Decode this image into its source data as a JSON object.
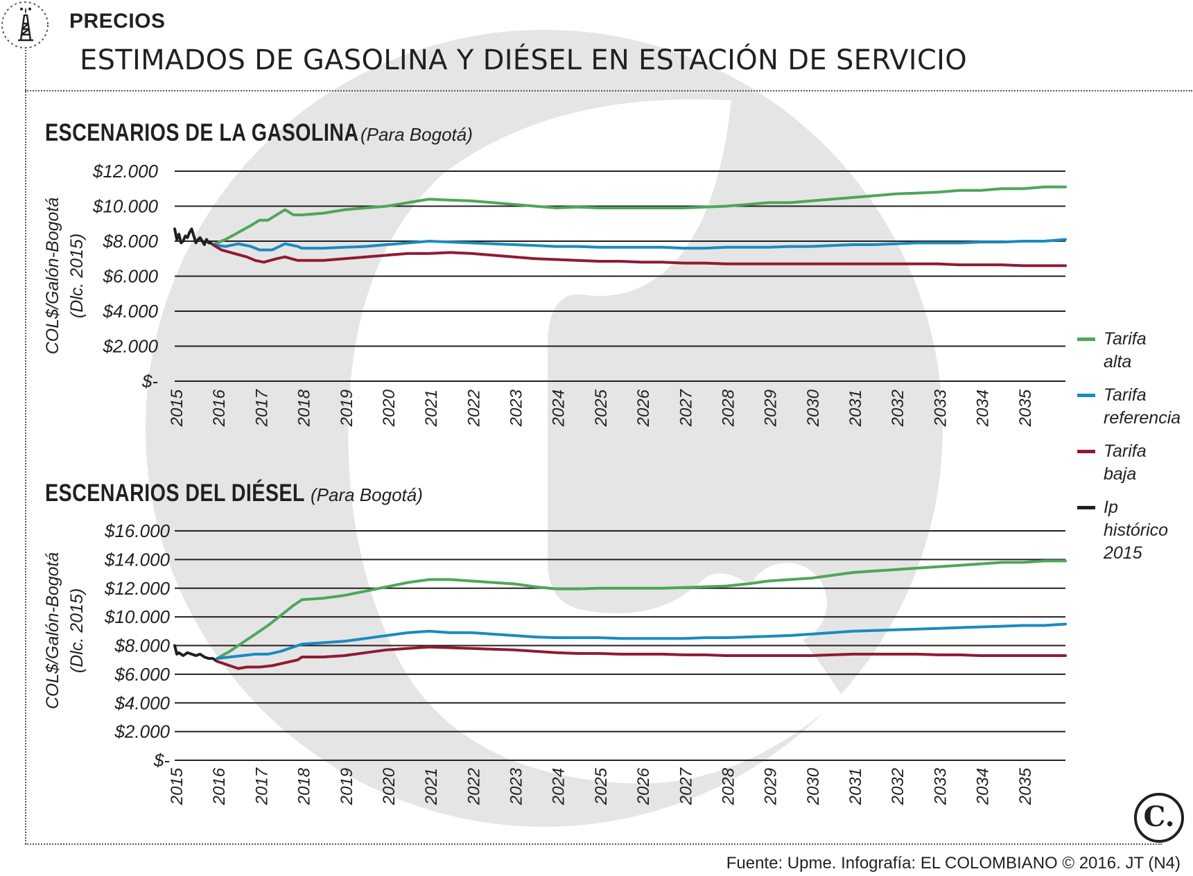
{
  "header": {
    "section": "PRECIOS",
    "title": "ESTIMADOS DE GASOLINA Y DIÉSEL EN ESTACIÓN DE SERVICIO",
    "icon": "oil-derrick-icon"
  },
  "colors": {
    "alta": "#4ea65a",
    "referencia": "#1a8bbf",
    "baja": "#8e1b33",
    "historico": "#231f20",
    "watermark": "#e5e5e5"
  },
  "legend": {
    "items": [
      {
        "key": "alta",
        "lines": [
          "Tarifa",
          "alta"
        ]
      },
      {
        "key": "referencia",
        "lines": [
          "Tarifa",
          "referencia"
        ]
      },
      {
        "key": "baja",
        "lines": [
          "Tarifa",
          "baja"
        ]
      },
      {
        "key": "historico",
        "lines": [
          "Ip",
          "histórico",
          "2015"
        ]
      }
    ]
  },
  "footer": {
    "source": "Fuente: Upme. Infografía: EL COLOMBIANO © 2016. JT (N4)",
    "logo_letter": "C."
  },
  "chart_data": [
    {
      "type": "line",
      "title": "ESCENARIOS DE LA GASOLINA",
      "subtitle": "(Para Bogotá)",
      "ylabel": [
        "COL$/Galón-Bogotá",
        "(Dlc. 2015)"
      ],
      "xlabel": "",
      "ylim": [
        0,
        12000
      ],
      "xlim": [
        2015,
        2036
      ],
      "yticks": [
        0,
        2000,
        4000,
        6000,
        8000,
        10000,
        12000
      ],
      "ytick_labels": [
        "$-",
        "$2.000",
        "$4.000",
        "$6.000",
        "$8.000",
        "$10.000",
        "$12.000"
      ],
      "xtick_labels": [
        "2015",
        "2016",
        "2017",
        "2018",
        "2019",
        "2020",
        "2021",
        "2022",
        "2023",
        "2024",
        "2025",
        "2026",
        "2027",
        "2028",
        "2029",
        "2030",
        "2031",
        "2032",
        "2033",
        "2034",
        "2035"
      ],
      "series": [
        {
          "key": "historico",
          "name": "Ip histórico 2015",
          "x": [
            2015.0,
            2015.05,
            2015.1,
            2015.15,
            2015.2,
            2015.25,
            2015.3,
            2015.35,
            2015.4,
            2015.45,
            2015.5,
            2015.55,
            2015.6,
            2015.65,
            2015.7,
            2015.75,
            2015.8,
            2015.85,
            2015.9
          ],
          "y": [
            8700,
            8100,
            8400,
            7900,
            8000,
            8300,
            8200,
            8500,
            8700,
            8300,
            7900,
            8100,
            8200,
            8000,
            7800,
            8100,
            7900,
            7900,
            7800
          ]
        },
        {
          "key": "alta",
          "name": "Tarifa alta",
          "x": [
            2015.9,
            2016.2,
            2016.5,
            2016.8,
            2017.0,
            2017.2,
            2017.4,
            2017.6,
            2017.8,
            2018.0,
            2018.5,
            2019.0,
            2019.5,
            2020.0,
            2020.5,
            2021.0,
            2021.5,
            2022.0,
            2022.5,
            2023.0,
            2023.5,
            2024.0,
            2024.5,
            2025.0,
            2025.5,
            2026.0,
            2026.5,
            2027.0,
            2027.5,
            2028.0,
            2028.5,
            2029.0,
            2029.5,
            2030.0,
            2030.5,
            2031.0,
            2031.5,
            2032.0,
            2032.5,
            2033.0,
            2033.5,
            2034.0,
            2034.5,
            2035.0,
            2035.5,
            2036.0
          ],
          "y": [
            7800,
            8100,
            8500,
            8900,
            9200,
            9200,
            9500,
            9800,
            9500,
            9500,
            9600,
            9800,
            9900,
            10000,
            10200,
            10400,
            10350,
            10300,
            10200,
            10100,
            10000,
            9900,
            9950,
            9900,
            9900,
            9900,
            9900,
            9900,
            9950,
            10000,
            10100,
            10200,
            10200,
            10300,
            10400,
            10500,
            10600,
            10700,
            10750,
            10800,
            10900,
            10900,
            11000,
            11000,
            11100,
            11100
          ]
        },
        {
          "key": "referencia",
          "name": "Tarifa referencia",
          "x": [
            2015.9,
            2016.2,
            2016.5,
            2016.8,
            2017.0,
            2017.3,
            2017.6,
            2017.9,
            2018.0,
            2018.5,
            2019.0,
            2019.5,
            2020.0,
            2020.5,
            2021.0,
            2021.5,
            2022.0,
            2022.5,
            2023.0,
            2023.5,
            2024.0,
            2024.5,
            2025.0,
            2025.5,
            2026.0,
            2026.5,
            2027.0,
            2027.5,
            2028.0,
            2028.5,
            2029.0,
            2029.5,
            2030.0,
            2030.5,
            2031.0,
            2031.5,
            2032.0,
            2032.5,
            2033.0,
            2033.5,
            2034.0,
            2034.5,
            2035.0,
            2035.5,
            2036.0
          ],
          "y": [
            7800,
            7700,
            7850,
            7700,
            7500,
            7500,
            7850,
            7700,
            7600,
            7600,
            7650,
            7700,
            7800,
            7900,
            8000,
            7950,
            7900,
            7850,
            7800,
            7750,
            7700,
            7700,
            7650,
            7650,
            7650,
            7650,
            7600,
            7600,
            7650,
            7650,
            7650,
            7700,
            7700,
            7750,
            7800,
            7800,
            7850,
            7900,
            7900,
            7900,
            7950,
            7950,
            8000,
            8000,
            8100
          ]
        },
        {
          "key": "baja",
          "name": "Tarifa baja",
          "x": [
            2015.9,
            2016.1,
            2016.4,
            2016.7,
            2016.9,
            2017.1,
            2017.4,
            2017.6,
            2017.9,
            2018.0,
            2018.5,
            2019.0,
            2019.5,
            2020.0,
            2020.5,
            2021.0,
            2021.5,
            2022.0,
            2022.5,
            2023.0,
            2023.5,
            2024.0,
            2024.5,
            2025.0,
            2025.5,
            2026.0,
            2026.5,
            2027.0,
            2027.5,
            2028.0,
            2028.5,
            2029.0,
            2029.5,
            2030.0,
            2030.5,
            2031.0,
            2031.5,
            2032.0,
            2032.5,
            2033.0,
            2033.5,
            2034.0,
            2034.5,
            2035.0,
            2035.5,
            2036.0
          ],
          "y": [
            7800,
            7500,
            7300,
            7100,
            6900,
            6800,
            7000,
            7100,
            6900,
            6900,
            6900,
            7000,
            7100,
            7200,
            7300,
            7300,
            7350,
            7300,
            7200,
            7100,
            7000,
            6950,
            6900,
            6850,
            6850,
            6800,
            6800,
            6750,
            6750,
            6700,
            6700,
            6700,
            6700,
            6700,
            6700,
            6700,
            6700,
            6700,
            6700,
            6700,
            6650,
            6650,
            6650,
            6600,
            6600,
            6600
          ]
        }
      ]
    },
    {
      "type": "line",
      "title": "ESCENARIOS DEL DIÉSEL",
      "subtitle": "(Para Bogotá)",
      "ylabel": [
        "COL$/Galón-Bogotá",
        "(Dlc. 2015)"
      ],
      "xlabel": "",
      "ylim": [
        0,
        16000
      ],
      "xlim": [
        2015,
        2036
      ],
      "yticks": [
        0,
        2000,
        4000,
        6000,
        8000,
        10000,
        12000,
        14000,
        16000
      ],
      "ytick_labels": [
        "$-",
        "$2.000",
        "$4.000",
        "$6.000",
        "$8.000",
        "$10.000",
        "$12.000",
        "$14.000",
        "$16.000"
      ],
      "xtick_labels": [
        "2015",
        "2016",
        "2017",
        "2018",
        "2019",
        "2020",
        "2021",
        "2022",
        "2023",
        "2024",
        "2025",
        "2026",
        "2027",
        "2028",
        "2029",
        "2030",
        "2031",
        "2032",
        "2033",
        "2034",
        "2035"
      ],
      "series": [
        {
          "key": "historico",
          "name": "Ip histórico 2015",
          "x": [
            2015.0,
            2015.05,
            2015.1,
            2015.2,
            2015.3,
            2015.4,
            2015.5,
            2015.6,
            2015.7,
            2015.8,
            2015.9,
            2016.0
          ],
          "y": [
            8000,
            7400,
            7500,
            7300,
            7500,
            7400,
            7300,
            7400,
            7200,
            7100,
            7100,
            6900
          ]
        },
        {
          "key": "alta",
          "name": "Tarifa alta",
          "x": [
            2016.0,
            2016.3,
            2016.6,
            2016.9,
            2017.2,
            2017.5,
            2017.8,
            2018.0,
            2018.5,
            2019.0,
            2019.5,
            2020.0,
            2020.5,
            2021.0,
            2021.5,
            2022.0,
            2022.5,
            2023.0,
            2023.5,
            2024.0,
            2024.5,
            2025.0,
            2025.5,
            2026.0,
            2026.5,
            2027.0,
            2027.5,
            2028.0,
            2028.5,
            2029.0,
            2029.5,
            2030.0,
            2030.5,
            2031.0,
            2031.5,
            2032.0,
            2032.5,
            2033.0,
            2033.5,
            2034.0,
            2034.5,
            2035.0,
            2035.5,
            2036.0
          ],
          "y": [
            7100,
            7600,
            8200,
            8800,
            9400,
            10100,
            10800,
            11200,
            11300,
            11500,
            11800,
            12100,
            12400,
            12600,
            12600,
            12500,
            12400,
            12300,
            12100,
            11950,
            11950,
            12000,
            12000,
            12000,
            12000,
            12050,
            12100,
            12150,
            12300,
            12500,
            12600,
            12700,
            12900,
            13100,
            13200,
            13300,
            13400,
            13500,
            13600,
            13700,
            13800,
            13800,
            13900,
            13900
          ]
        },
        {
          "key": "referencia",
          "name": "Tarifa referencia",
          "x": [
            2016.0,
            2016.3,
            2016.6,
            2016.9,
            2017.2,
            2017.5,
            2017.8,
            2018.0,
            2018.5,
            2019.0,
            2019.5,
            2020.0,
            2020.5,
            2021.0,
            2021.5,
            2022.0,
            2022.5,
            2023.0,
            2023.5,
            2024.0,
            2024.5,
            2025.0,
            2025.5,
            2026.0,
            2026.5,
            2027.0,
            2027.5,
            2028.0,
            2028.5,
            2029.0,
            2029.5,
            2030.0,
            2030.5,
            2031.0,
            2031.5,
            2032.0,
            2032.5,
            2033.0,
            2033.5,
            2034.0,
            2034.5,
            2035.0,
            2035.5,
            2036.0
          ],
          "y": [
            7100,
            7200,
            7300,
            7400,
            7400,
            7600,
            7900,
            8100,
            8200,
            8300,
            8500,
            8700,
            8900,
            9000,
            8900,
            8900,
            8800,
            8700,
            8600,
            8550,
            8550,
            8550,
            8500,
            8500,
            8500,
            8500,
            8550,
            8550,
            8600,
            8650,
            8700,
            8800,
            8900,
            9000,
            9050,
            9100,
            9150,
            9200,
            9250,
            9300,
            9350,
            9400,
            9400,
            9500
          ]
        },
        {
          "key": "baja",
          "name": "Tarifa baja",
          "x": [
            2016.0,
            2016.3,
            2016.5,
            2016.7,
            2017.0,
            2017.3,
            2017.6,
            2017.9,
            2018.0,
            2018.5,
            2019.0,
            2019.5,
            2020.0,
            2020.5,
            2021.0,
            2021.5,
            2022.0,
            2022.5,
            2023.0,
            2023.5,
            2024.0,
            2024.5,
            2025.0,
            2025.5,
            2026.0,
            2026.5,
            2027.0,
            2027.5,
            2028.0,
            2028.5,
            2029.0,
            2029.5,
            2030.0,
            2030.5,
            2031.0,
            2031.5,
            2032.0,
            2032.5,
            2033.0,
            2033.5,
            2034.0,
            2034.5,
            2035.0,
            2035.5,
            2036.0
          ],
          "y": [
            6900,
            6600,
            6400,
            6500,
            6500,
            6600,
            6800,
            7000,
            7200,
            7200,
            7300,
            7500,
            7700,
            7800,
            7900,
            7850,
            7800,
            7750,
            7700,
            7600,
            7500,
            7450,
            7450,
            7400,
            7400,
            7400,
            7350,
            7350,
            7300,
            7300,
            7300,
            7300,
            7300,
            7350,
            7400,
            7400,
            7400,
            7400,
            7350,
            7350,
            7300,
            7300,
            7300,
            7300,
            7300
          ]
        }
      ]
    }
  ]
}
